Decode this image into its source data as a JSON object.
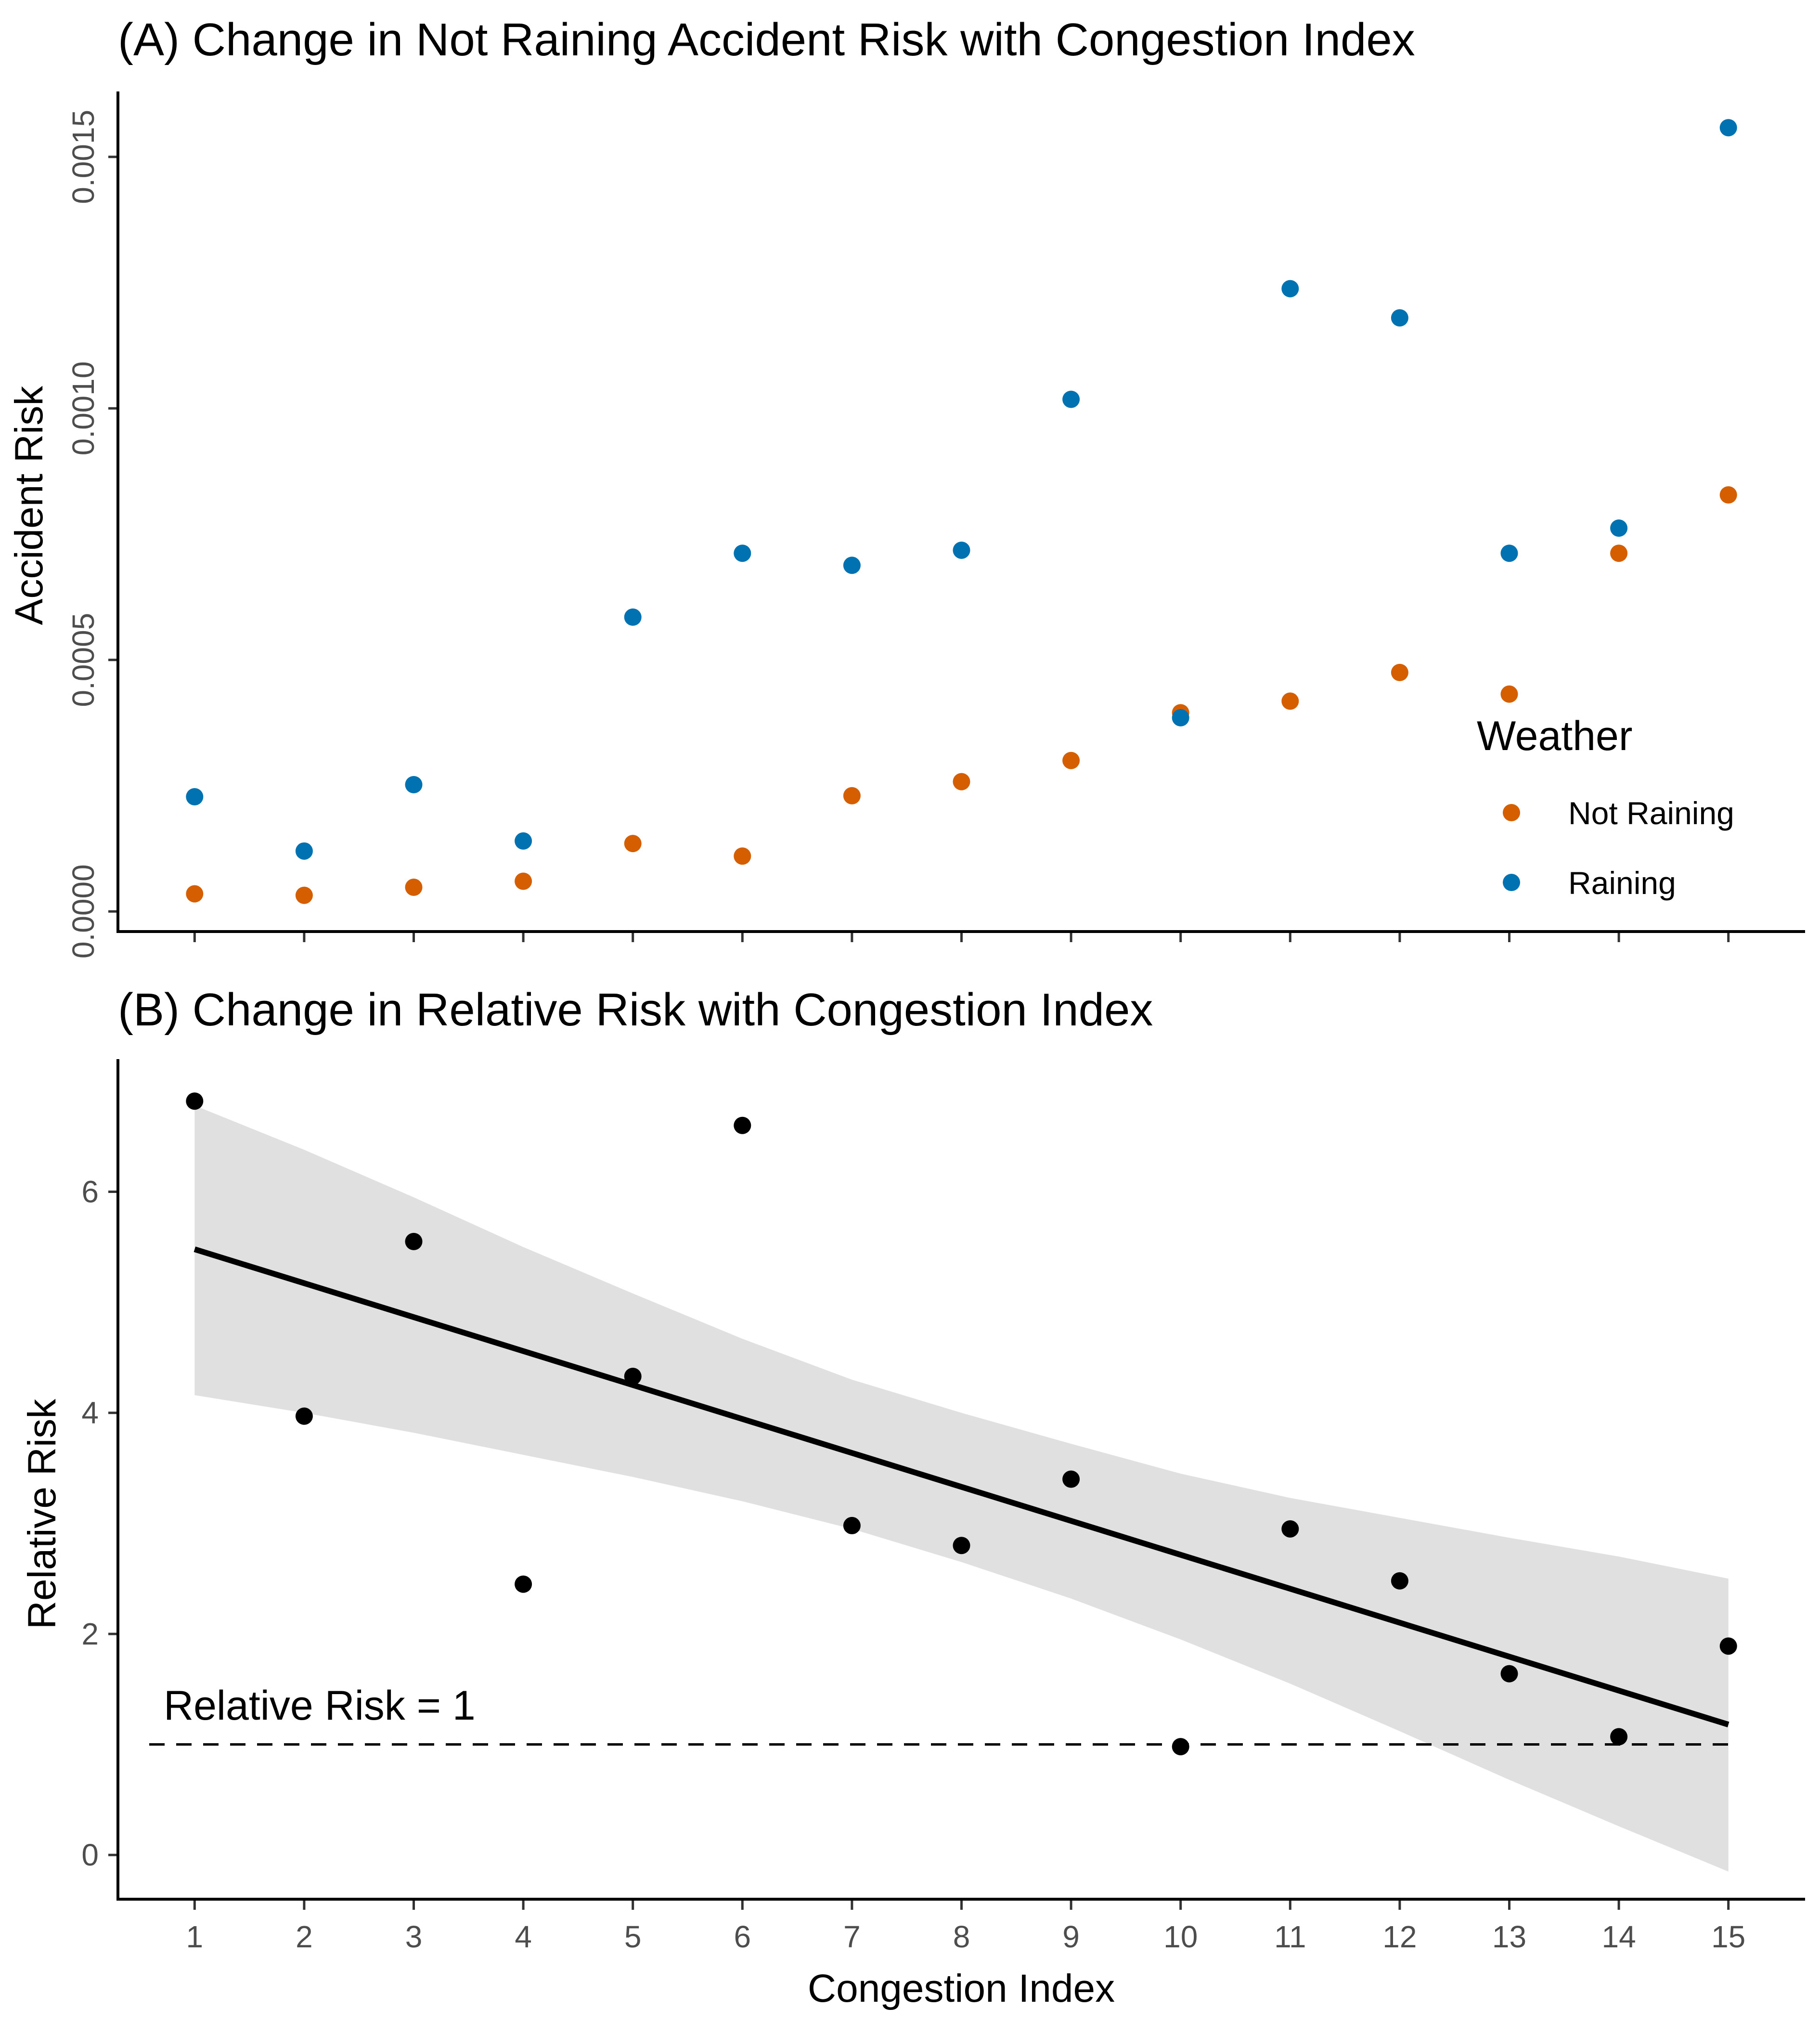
{
  "chart_data": [
    {
      "type": "scatter",
      "title": "(A) Change in Not Raining Accident Risk with Congestion Index",
      "xlabel": "",
      "ylabel": "Accident Risk",
      "x": [
        1,
        2,
        3,
        4,
        5,
        6,
        7,
        8,
        9,
        10,
        11,
        12,
        13,
        14,
        15
      ],
      "xlim": [
        0.3,
        15.7
      ],
      "ylim": [
        -4e-05,
        0.00163
      ],
      "yticks": [
        0.0,
        0.0005,
        0.001,
        0.0015
      ],
      "ytick_labels": [
        "0.0000",
        "0.0005",
        "0.0010",
        "0.0015"
      ],
      "series": [
        {
          "name": "Not Raining",
          "color": "#D55E00",
          "values": [
            3.5e-05,
            3.2e-05,
            4.8e-05,
            6e-05,
            0.000135,
            0.00011,
            0.00023,
            0.000258,
            0.0003,
            0.000395,
            0.000418,
            0.000475,
            0.000432,
            0.000712,
            0.000828
          ]
        },
        {
          "name": "Raining",
          "color": "#0072B2",
          "values": [
            0.000228,
            0.00012,
            0.000252,
            0.00014,
            0.000585,
            0.000712,
            0.000688,
            0.000718,
            0.001018,
            0.000385,
            0.001238,
            0.00118,
            0.000712,
            0.000762,
            0.001558
          ]
        }
      ],
      "legend": {
        "title": "Weather",
        "position": "right",
        "entries": [
          "Not Raining",
          "Raining"
        ]
      },
      "grid": false
    },
    {
      "type": "scatter",
      "title": "(B) Change in Relative Risk with Congestion Index",
      "xlabel": "Congestion Index",
      "ylabel": "Relative Risk",
      "x": [
        1,
        2,
        3,
        4,
        5,
        6,
        7,
        8,
        9,
        10,
        11,
        12,
        13,
        14,
        15
      ],
      "xticks": [
        1,
        2,
        3,
        4,
        5,
        6,
        7,
        8,
        9,
        10,
        11,
        12,
        13,
        14,
        15
      ],
      "xtick_labels": [
        "1",
        "2",
        "3",
        "4",
        "5",
        "6",
        "7",
        "8",
        "9",
        "10",
        "11",
        "12",
        "13",
        "14",
        "15"
      ],
      "xlim": [
        0.3,
        15.7
      ],
      "ylim": [
        -0.4,
        7.2
      ],
      "yticks": [
        0,
        2,
        4,
        6
      ],
      "ytick_labels": [
        "0",
        "2",
        "4",
        "6"
      ],
      "series": [
        {
          "name": "Relative Risk",
          "color": "#000000",
          "values": [
            6.82,
            3.97,
            5.55,
            2.45,
            4.33,
            6.6,
            2.98,
            2.8,
            3.4,
            0.98,
            2.95,
            2.48,
            1.64,
            1.07,
            1.89
          ]
        }
      ],
      "fit": {
        "type": "linear",
        "x": [
          1,
          15
        ],
        "y": [
          5.48,
          1.18
        ],
        "color": "#000000"
      },
      "confidence_band": {
        "color": "#e0e0e0",
        "x": [
          1,
          2,
          3,
          4,
          5,
          6,
          7,
          8,
          9,
          10,
          11,
          12,
          13,
          14,
          15
        ],
        "upper": [
          6.78,
          6.38,
          5.95,
          5.5,
          5.08,
          4.67,
          4.3,
          4.0,
          3.72,
          3.45,
          3.23,
          3.05,
          2.87,
          2.7,
          2.5
        ],
        "lower": [
          4.16,
          4.0,
          3.82,
          3.62,
          3.42,
          3.2,
          2.95,
          2.65,
          2.32,
          1.95,
          1.55,
          1.12,
          0.68,
          0.26,
          -0.15
        ]
      },
      "reference_line": {
        "y": 1,
        "style": "dashed",
        "label": "Relative Risk = 1"
      },
      "grid": false
    }
  ]
}
